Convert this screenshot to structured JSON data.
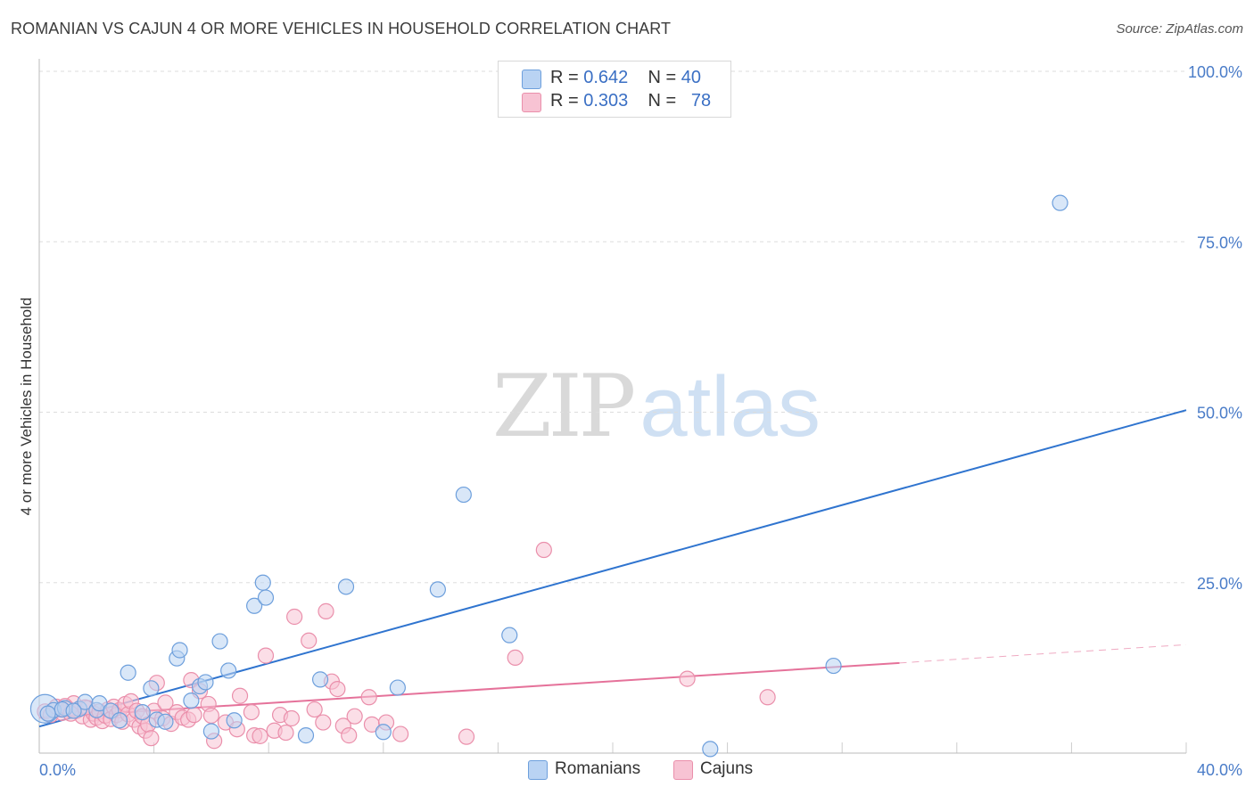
{
  "header": {
    "title": "ROMANIAN VS CAJUN 4 OR MORE VEHICLES IN HOUSEHOLD CORRELATION CHART",
    "source": "Source: ZipAtlas.com"
  },
  "watermark": {
    "zip": "ZIP",
    "atlas": "atlas"
  },
  "legend_top": {
    "rows": [
      {
        "r_label": "R = ",
        "r_value": "0.642",
        "n_label": "N = ",
        "n_value": "40"
      },
      {
        "r_label": "R = ",
        "r_value": "0.303",
        "n_label": "N = ",
        "n_value": "78"
      }
    ]
  },
  "legend_bottom": {
    "items": [
      "Romanians",
      "Cajuns"
    ]
  },
  "colors": {
    "romanians_fill": "#b9d3f3",
    "romanians_stroke": "#6d9fdc",
    "romanians_line": "#2f74cf",
    "cajuns_fill": "#f7c3d3",
    "cajuns_stroke": "#ea8fab",
    "cajuns_line": "#e5729a",
    "grid": "#dddddd",
    "tick": "#4a7cc8"
  },
  "chart_data": {
    "type": "scatter",
    "title": "ROMANIAN VS CAJUN 4 OR MORE VEHICLES IN HOUSEHOLD CORRELATION CHART",
    "xlabel": "",
    "ylabel": "4 or more Vehicles in Household",
    "xlim": [
      0,
      40
    ],
    "ylim": [
      0,
      105
    ],
    "x_tick_labels": [
      {
        "value": 0,
        "label": "0.0%"
      },
      {
        "value": 40,
        "label": "40.0%"
      }
    ],
    "y_tick_labels": [
      {
        "value": 25,
        "label": "25.0%"
      },
      {
        "value": 50,
        "label": "50.0%"
      },
      {
        "value": 75,
        "label": "75.0%"
      },
      {
        "value": 100,
        "label": "100.0%"
      }
    ],
    "x_gridlines": [
      0,
      4,
      8,
      12,
      16,
      20,
      24,
      28,
      32,
      36,
      40
    ],
    "y_gridlines": [
      25,
      50,
      75,
      100
    ],
    "grid": true,
    "legend": "top-center",
    "series": [
      {
        "name": "Romanians",
        "R": 0.642,
        "N": 40,
        "trend": {
          "x": [
            0,
            40
          ],
          "y": [
            3.9,
            50.3
          ],
          "dashed_from": null
        },
        "points": [
          {
            "x": 0.2,
            "y": 6.5,
            "big": true
          },
          {
            "x": 0.5,
            "y": 6.3
          },
          {
            "x": 0.9,
            "y": 6.6
          },
          {
            "x": 1.4,
            "y": 6.5
          },
          {
            "x": 1.6,
            "y": 7.5
          },
          {
            "x": 2.0,
            "y": 6.3
          },
          {
            "x": 2.1,
            "y": 7.3
          },
          {
            "x": 2.5,
            "y": 6.2
          },
          {
            "x": 2.8,
            "y": 4.8
          },
          {
            "x": 3.1,
            "y": 11.8
          },
          {
            "x": 3.6,
            "y": 6.0
          },
          {
            "x": 3.9,
            "y": 9.5
          },
          {
            "x": 4.1,
            "y": 4.9
          },
          {
            "x": 4.4,
            "y": 4.6
          },
          {
            "x": 4.8,
            "y": 13.9
          },
          {
            "x": 4.9,
            "y": 15.1
          },
          {
            "x": 5.3,
            "y": 7.7
          },
          {
            "x": 5.6,
            "y": 9.8
          },
          {
            "x": 5.8,
            "y": 10.4
          },
          {
            "x": 6.0,
            "y": 3.2
          },
          {
            "x": 6.3,
            "y": 16.4
          },
          {
            "x": 6.6,
            "y": 12.1
          },
          {
            "x": 6.8,
            "y": 4.8
          },
          {
            "x": 7.5,
            "y": 21.6
          },
          {
            "x": 7.8,
            "y": 25.0
          },
          {
            "x": 7.9,
            "y": 22.8
          },
          {
            "x": 9.3,
            "y": 2.6
          },
          {
            "x": 9.8,
            "y": 10.8
          },
          {
            "x": 10.7,
            "y": 24.4
          },
          {
            "x": 12.0,
            "y": 3.1
          },
          {
            "x": 12.5,
            "y": 9.6
          },
          {
            "x": 13.9,
            "y": 24.0
          },
          {
            "x": 14.8,
            "y": 37.9
          },
          {
            "x": 16.4,
            "y": 17.3
          },
          {
            "x": 23.4,
            "y": 0.6
          },
          {
            "x": 27.7,
            "y": 12.8
          },
          {
            "x": 35.6,
            "y": 80.7
          },
          {
            "x": 0.8,
            "y": 6.4
          },
          {
            "x": 1.2,
            "y": 6.2
          },
          {
            "x": 0.3,
            "y": 5.8
          }
        ]
      },
      {
        "name": "Cajuns",
        "R": 0.303,
        "N": 78,
        "trend": {
          "x": [
            0,
            40
          ],
          "y": [
            5.2,
            15.9
          ],
          "dashed_from": 30.0
        },
        "points": [
          {
            "x": 0.2,
            "y": 6.1
          },
          {
            "x": 0.4,
            "y": 5.6
          },
          {
            "x": 0.6,
            "y": 6.8
          },
          {
            "x": 0.8,
            "y": 5.9
          },
          {
            "x": 1.0,
            "y": 6.5
          },
          {
            "x": 1.2,
            "y": 7.3
          },
          {
            "x": 1.3,
            "y": 6.2
          },
          {
            "x": 1.5,
            "y": 5.4
          },
          {
            "x": 1.7,
            "y": 6.6
          },
          {
            "x": 1.8,
            "y": 4.9
          },
          {
            "x": 1.9,
            "y": 5.8
          },
          {
            "x": 2.0,
            "y": 5.2
          },
          {
            "x": 2.1,
            "y": 6.1
          },
          {
            "x": 2.2,
            "y": 4.7
          },
          {
            "x": 2.3,
            "y": 5.5
          },
          {
            "x": 2.4,
            "y": 6.4
          },
          {
            "x": 2.5,
            "y": 5.0
          },
          {
            "x": 2.6,
            "y": 6.8
          },
          {
            "x": 2.7,
            "y": 5.6
          },
          {
            "x": 2.8,
            "y": 6.3
          },
          {
            "x": 2.9,
            "y": 4.6
          },
          {
            "x": 3.0,
            "y": 7.2
          },
          {
            "x": 3.1,
            "y": 5.7
          },
          {
            "x": 3.2,
            "y": 7.6
          },
          {
            "x": 3.3,
            "y": 4.9
          },
          {
            "x": 3.4,
            "y": 6.2
          },
          {
            "x": 3.5,
            "y": 3.9
          },
          {
            "x": 3.6,
            "y": 5.4
          },
          {
            "x": 3.7,
            "y": 3.3
          },
          {
            "x": 3.8,
            "y": 4.2
          },
          {
            "x": 3.9,
            "y": 2.2
          },
          {
            "x": 4.0,
            "y": 6.2
          },
          {
            "x": 4.1,
            "y": 10.3
          },
          {
            "x": 4.3,
            "y": 5.1
          },
          {
            "x": 4.4,
            "y": 7.4
          },
          {
            "x": 4.6,
            "y": 4.3
          },
          {
            "x": 4.8,
            "y": 6.0
          },
          {
            "x": 5.0,
            "y": 5.2
          },
          {
            "x": 5.2,
            "y": 4.9
          },
          {
            "x": 5.3,
            "y": 10.7
          },
          {
            "x": 5.4,
            "y": 5.6
          },
          {
            "x": 5.6,
            "y": 9.1
          },
          {
            "x": 5.9,
            "y": 7.2
          },
          {
            "x": 6.0,
            "y": 5.5
          },
          {
            "x": 6.1,
            "y": 1.8
          },
          {
            "x": 6.5,
            "y": 4.5
          },
          {
            "x": 6.9,
            "y": 3.5
          },
          {
            "x": 7.0,
            "y": 8.4
          },
          {
            "x": 7.4,
            "y": 6.0
          },
          {
            "x": 7.5,
            "y": 2.6
          },
          {
            "x": 7.7,
            "y": 2.5
          },
          {
            "x": 7.9,
            "y": 14.3
          },
          {
            "x": 8.2,
            "y": 3.3
          },
          {
            "x": 8.4,
            "y": 5.6
          },
          {
            "x": 8.6,
            "y": 3.0
          },
          {
            "x": 8.8,
            "y": 5.1
          },
          {
            "x": 8.9,
            "y": 20.0
          },
          {
            "x": 9.4,
            "y": 16.5
          },
          {
            "x": 9.6,
            "y": 6.4
          },
          {
            "x": 9.9,
            "y": 4.5
          },
          {
            "x": 10.0,
            "y": 20.8
          },
          {
            "x": 10.2,
            "y": 10.5
          },
          {
            "x": 10.4,
            "y": 9.4
          },
          {
            "x": 10.6,
            "y": 4.0
          },
          {
            "x": 10.8,
            "y": 2.6
          },
          {
            "x": 11.0,
            "y": 5.4
          },
          {
            "x": 11.5,
            "y": 8.2
          },
          {
            "x": 11.6,
            "y": 4.2
          },
          {
            "x": 12.1,
            "y": 4.5
          },
          {
            "x": 12.6,
            "y": 2.8
          },
          {
            "x": 14.9,
            "y": 2.4
          },
          {
            "x": 16.6,
            "y": 14.0
          },
          {
            "x": 17.6,
            "y": 29.8
          },
          {
            "x": 22.6,
            "y": 10.9
          },
          {
            "x": 25.4,
            "y": 8.2
          },
          {
            "x": 0.9,
            "y": 6.9
          },
          {
            "x": 1.1,
            "y": 5.8
          },
          {
            "x": 1.6,
            "y": 6.7
          }
        ]
      }
    ]
  }
}
